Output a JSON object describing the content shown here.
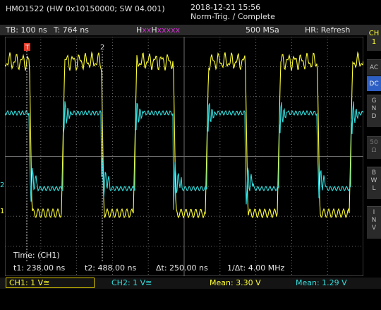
{
  "header": {
    "device": "HMO1522 (HW 0x10150000; SW 04.001)",
    "datetime": "2018-12-21 15:56",
    "status": "Norm-Trig. / Complete"
  },
  "topbar": {
    "tb": "TB: 100 ns",
    "t": "T: 764 ns",
    "hx_prefix": "H",
    "hx_a": "xx",
    "hx_b": "H",
    "hx_c": "xxxxx",
    "samplerate": "500 MSa",
    "hr": "HR: Refresh"
  },
  "sidebar": {
    "channel": "CH\n1",
    "buttons": [
      "AC",
      "DC",
      "G\nN\nD",
      "50\nΩ",
      "B\nW\nL",
      "I\nN\nV"
    ]
  },
  "screen": {
    "trigger_marker": "T",
    "cursor_label": "2",
    "ch2_marker": "2",
    "ch1_marker": "1",
    "time_label": "Time: (CH1)",
    "t1": "t1: 238.00 ns",
    "t2": "t2: 488.00 ns",
    "dt": "Δt: 250.00 ns",
    "inv_dt": "1/Δt: 4.00 MHz"
  },
  "bottombar": {
    "ch1": "CH1: 1 V≅",
    "ch2": "CH2: 1 V≅",
    "mean1": "Mean: 3.30 V",
    "mean2": "Mean: 1.29 V"
  },
  "colors": {
    "ch1": "#ffff33",
    "ch2": "#33dddd",
    "accent": "#2d5ec4",
    "grid": "#7a7a7a"
  }
}
